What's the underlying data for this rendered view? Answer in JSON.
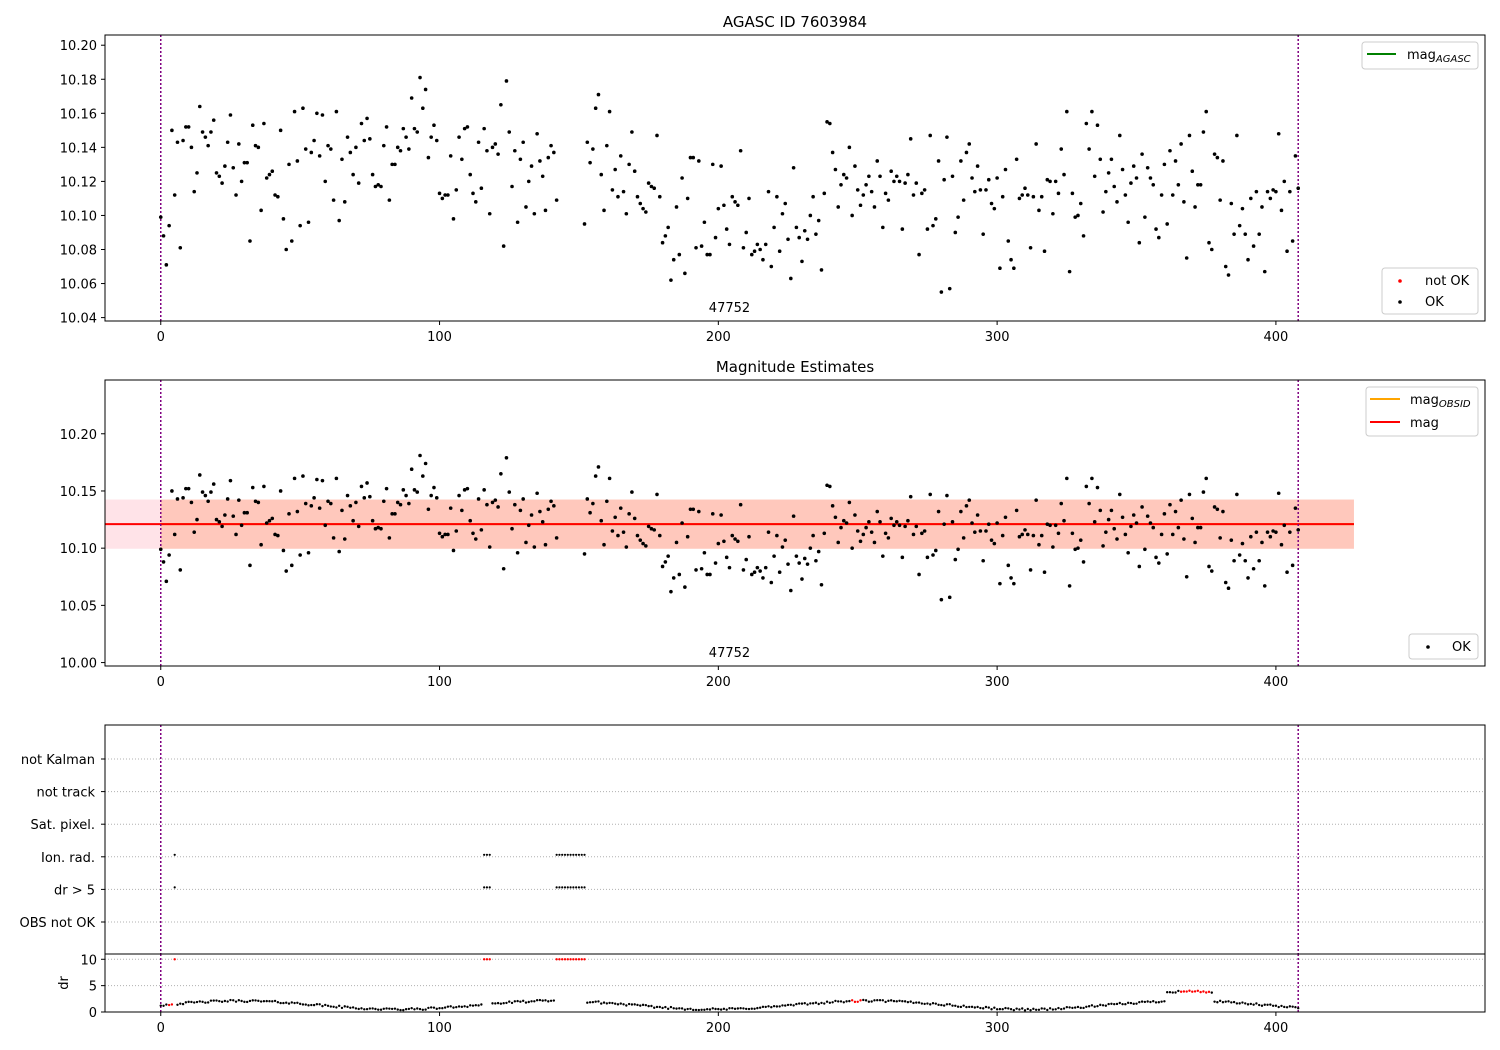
{
  "colors": {
    "ok": "#000000",
    "not_ok": "#ff0000",
    "agasc_line": "#008000",
    "obsid_line": "#ffa500",
    "mag_line": "#ff0000",
    "vline": "#800080",
    "band_outer": "#ffc0cb",
    "band_inner": "#ffa07a",
    "grid": "#b0b0b0"
  },
  "chart_data": [
    {
      "id": "agasc",
      "type": "scatter",
      "title": "AGASC ID 7603984",
      "xlim": [
        -20,
        475
      ],
      "ylim": [
        10.038,
        10.206
      ],
      "xticks": [
        0,
        100,
        200,
        300,
        400
      ],
      "xtick_labels": [
        "0",
        "100",
        "200",
        "300",
        "400"
      ],
      "yticks": [
        10.04,
        10.06,
        10.08,
        10.1,
        10.12,
        10.14,
        10.16,
        10.18,
        10.2
      ],
      "ytick_labels": [
        "10.04",
        "10.06",
        "10.08",
        "10.10",
        "10.12",
        "10.14",
        "10.16",
        "10.18",
        "10.20"
      ],
      "obsid_annotation": {
        "text": "47752",
        "x": 204
      },
      "vlines_x": [
        0,
        408
      ],
      "legend_lines": [
        {
          "label": "mag",
          "sub": "AGASC",
          "color_key": "agasc_line"
        }
      ],
      "legend_points": [
        {
          "label": "not OK",
          "color_key": "not_ok"
        },
        {
          "label": "OK",
          "color_key": "ok"
        }
      ],
      "series": [
        {
          "name": "OK",
          "points": "generated_from_seed",
          "seed": 7603984,
          "n": 409,
          "gap": [
            142,
            152
          ],
          "mean": 10.121
        }
      ]
    },
    {
      "id": "estimates",
      "type": "scatter",
      "title": "Magnitude Estimates",
      "xlim": [
        -20,
        475
      ],
      "ylim": [
        9.997,
        10.247
      ],
      "xticks": [
        0,
        100,
        200,
        300,
        400
      ],
      "xtick_labels": [
        "0",
        "100",
        "200",
        "300",
        "400"
      ],
      "yticks": [
        10.0,
        10.05,
        10.1,
        10.15,
        10.2
      ],
      "ytick_labels": [
        "10.00",
        "10.05",
        "10.10",
        "10.15",
        "10.20"
      ],
      "obsid_annotation": {
        "text": "47752",
        "x": 204
      },
      "vlines_x": [
        0,
        408
      ],
      "mag": 10.121,
      "band_outer": [
        10.0995,
        10.1425
      ],
      "band_inner": [
        10.0995,
        10.1425
      ],
      "band_x": [
        -20,
        428
      ],
      "inner_x": [
        0,
        428
      ],
      "legend_lines": [
        {
          "label": "mag",
          "sub": "OBSID",
          "color_key": "obsid_line"
        },
        {
          "label": "mag",
          "sub": "",
          "color_key": "mag_line"
        }
      ],
      "legend_points": [
        {
          "label": "OK",
          "color_key": "ok"
        }
      ]
    },
    {
      "id": "flags",
      "type": "scatter",
      "xlim": [
        -20,
        475
      ],
      "categories": [
        "not Kalman",
        "not track",
        "Sat. pixel.",
        "Ion. rad.",
        "dr > 5",
        "OBS not OK"
      ],
      "flagged_ranges": [
        [
          5,
          5
        ],
        [
          116,
          118
        ],
        [
          142,
          152
        ]
      ],
      "vlines_x": [
        0,
        408
      ]
    },
    {
      "id": "dr",
      "type": "scatter",
      "ylabel": "dr",
      "xlim": [
        -20,
        475
      ],
      "ylim": [
        0,
        11
      ],
      "xticks": [
        0,
        100,
        200,
        300,
        400
      ],
      "xtick_labels": [
        "0",
        "100",
        "200",
        "300",
        "400"
      ],
      "yticks": [
        0,
        5,
        10
      ],
      "ytick_labels": [
        "0",
        "5",
        "10"
      ],
      "vlines_x": [
        0,
        408
      ],
      "red_ranges": [
        [
          3,
          5
        ],
        [
          248,
          251
        ],
        [
          366,
          376
        ]
      ],
      "capped_ranges": [
        [
          5,
          5
        ],
        [
          116,
          118
        ],
        [
          142,
          152
        ]
      ]
    }
  ]
}
